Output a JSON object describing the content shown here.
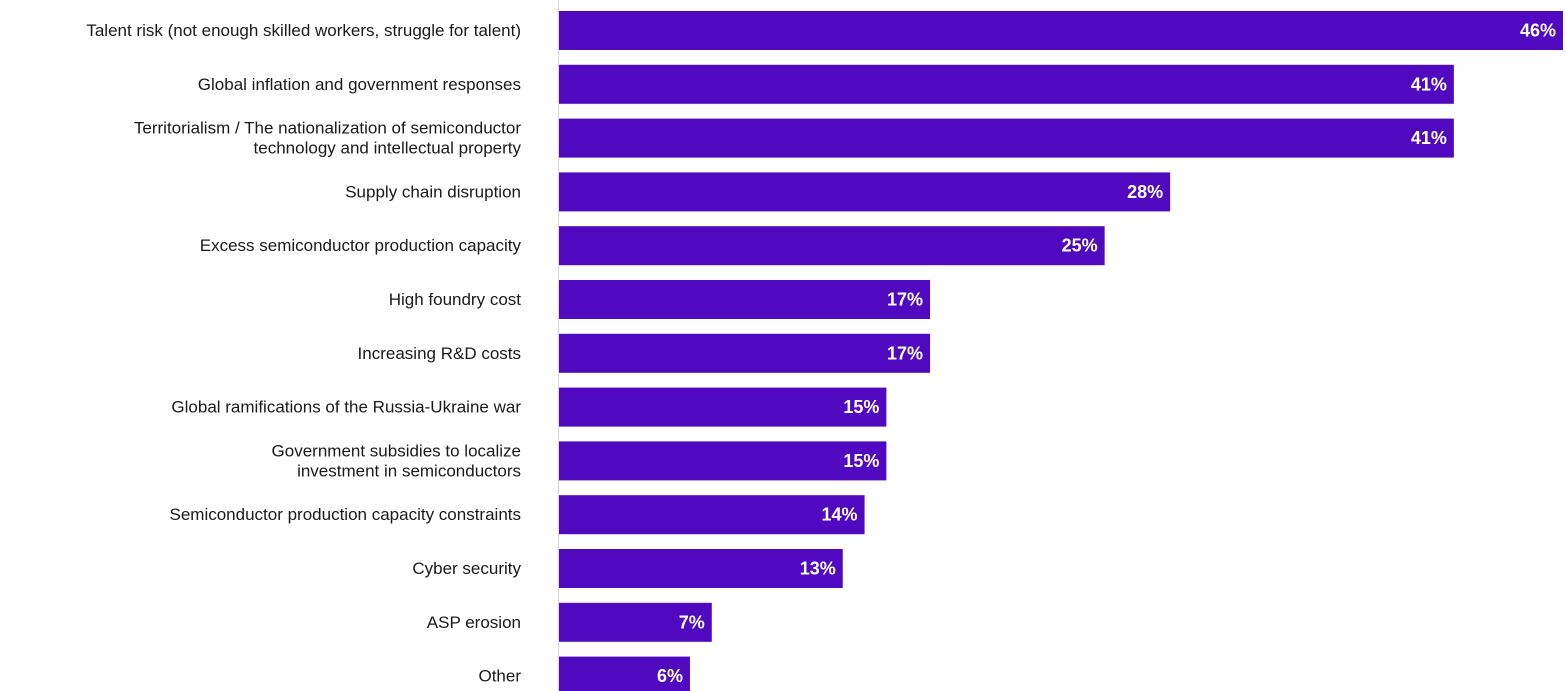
{
  "chart_data": {
    "type": "bar",
    "orientation": "horizontal",
    "categories": [
      [
        "Talent risk (not enough skilled workers, struggle for talent)"
      ],
      [
        "Global inflation and government responses"
      ],
      [
        "Territorialism / The nationalization of semiconductor",
        "technology and intellectual property"
      ],
      [
        "Supply chain disruption"
      ],
      [
        "Excess semiconductor production capacity"
      ],
      [
        "High foundry cost"
      ],
      [
        "Increasing R&D costs"
      ],
      [
        "Global ramifications of the Russia-Ukraine war"
      ],
      [
        "Government subsidies to localize",
        "investment in semiconductors"
      ],
      [
        "Semiconductor production capacity constraints"
      ],
      [
        "Cyber security"
      ],
      [
        "ASP erosion"
      ],
      [
        "Other"
      ]
    ],
    "values": [
      46,
      41,
      41,
      28,
      25,
      17,
      17,
      15,
      15,
      14,
      13,
      7,
      6
    ],
    "value_labels": [
      "46%",
      "41%",
      "41%",
      "28%",
      "25%",
      "17%",
      "17%",
      "15%",
      "15%",
      "14%",
      "13%",
      "7%",
      "6%"
    ],
    "unit": "%",
    "xlim": [
      0,
      46
    ],
    "title": "",
    "xlabel": "",
    "ylabel": "",
    "grid": false,
    "legend": "none",
    "colors": {
      "bar": "#5009BF",
      "value_text": "#FFFFFF",
      "axis": "#D9D9D9",
      "label_text": "#1A1A1A"
    }
  }
}
